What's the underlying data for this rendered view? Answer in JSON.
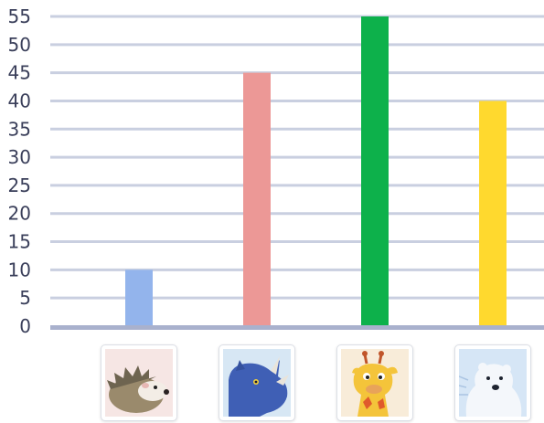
{
  "chart_data": {
    "type": "bar",
    "categories": [
      "hedgehog",
      "rhinoceros",
      "giraffe",
      "polar-bear"
    ],
    "values": [
      10,
      45,
      55,
      40
    ],
    "ylim": [
      0,
      55
    ],
    "yticks": [
      0,
      5,
      10,
      15,
      20,
      25,
      30,
      35,
      40,
      45,
      50,
      55
    ],
    "ytick_labels": [
      "0",
      "5",
      "10",
      "15",
      "20",
      "25",
      "30",
      "35",
      "40",
      "45",
      "50",
      "55"
    ],
    "grid": true,
    "title": "",
    "xlabel": "",
    "ylabel": "",
    "colors": [
      "#93b4ec",
      "#ec9896",
      "#0db14b",
      "#ffd92e"
    ],
    "gridline_color": "#c9cfe0",
    "axis_color": "#a9b1cd"
  },
  "categories_icons": [
    "hedgehog-icon",
    "rhinoceros-icon",
    "giraffe-icon",
    "polar-bear-icon"
  ]
}
